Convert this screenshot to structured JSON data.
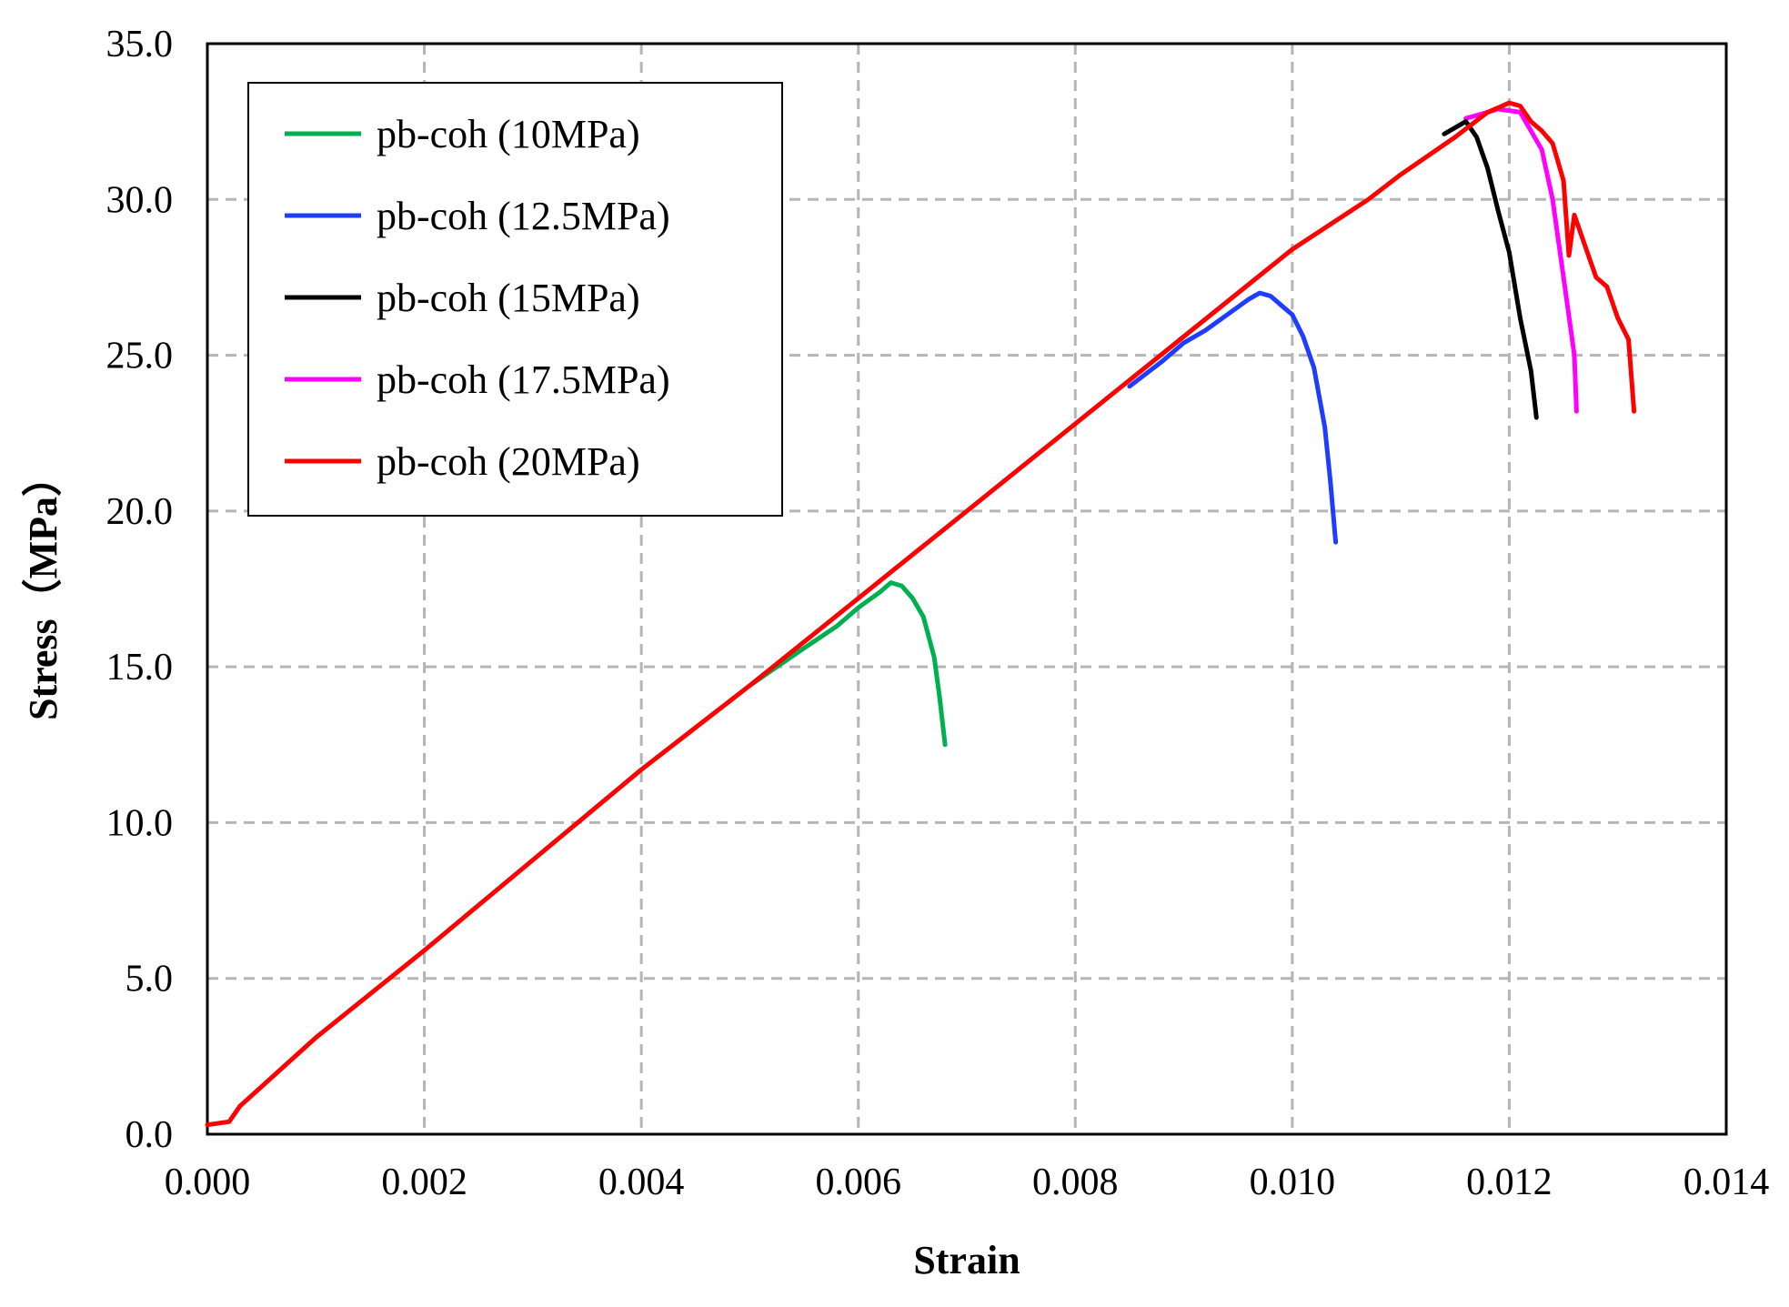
{
  "chart_data": {
    "type": "line",
    "title": "",
    "xlabel": "Strain",
    "ylabel": "Stress（MPa）",
    "xlim": [
      0,
      0.014
    ],
    "ylim": [
      0,
      35
    ],
    "x_ticks": [
      "0.000",
      "0.002",
      "0.004",
      "0.006",
      "0.008",
      "0.010",
      "0.012",
      "0.014"
    ],
    "y_ticks": [
      "0.0",
      "5.0",
      "10.0",
      "15.0",
      "20.0",
      "25.0",
      "30.0",
      "35.0"
    ],
    "grid": true,
    "legend_position": "top-left",
    "series": [
      {
        "name": "pb-coh (10MPa)",
        "color": "#00b050",
        "points": [
          [
            0.005,
            14.4
          ],
          [
            0.0055,
            15.6
          ],
          [
            0.0058,
            16.3
          ],
          [
            0.006,
            16.9
          ],
          [
            0.0062,
            17.4
          ],
          [
            0.0063,
            17.7
          ],
          [
            0.0064,
            17.6
          ],
          [
            0.0065,
            17.2
          ],
          [
            0.0066,
            16.6
          ],
          [
            0.0067,
            15.3
          ],
          [
            0.00675,
            14.0
          ],
          [
            0.0068,
            12.5
          ]
        ]
      },
      {
        "name": "pb-coh (12.5MPa)",
        "color": "#1f3dff",
        "points": [
          [
            0.0085,
            24.0
          ],
          [
            0.0088,
            24.8
          ],
          [
            0.009,
            25.4
          ],
          [
            0.0092,
            25.8
          ],
          [
            0.0094,
            26.3
          ],
          [
            0.0096,
            26.8
          ],
          [
            0.0097,
            27.0
          ],
          [
            0.0098,
            26.9
          ],
          [
            0.0099,
            26.6
          ],
          [
            0.01,
            26.3
          ],
          [
            0.0101,
            25.6
          ],
          [
            0.0102,
            24.6
          ],
          [
            0.0103,
            22.7
          ],
          [
            0.01035,
            21.0
          ],
          [
            0.0104,
            19.0
          ]
        ]
      },
      {
        "name": "pb-coh (15MPa)",
        "color": "#000000",
        "points": [
          [
            0.0114,
            32.1
          ],
          [
            0.0116,
            32.5
          ],
          [
            0.0117,
            32.0
          ],
          [
            0.0118,
            31.0
          ],
          [
            0.0119,
            29.6
          ],
          [
            0.012,
            28.3
          ],
          [
            0.0121,
            26.2
          ],
          [
            0.0122,
            24.5
          ],
          [
            0.01225,
            23.0
          ]
        ]
      },
      {
        "name": "pb-coh (17.5MPa)",
        "color": "#ff00ff",
        "points": [
          [
            0.0116,
            32.6
          ],
          [
            0.0118,
            32.8
          ],
          [
            0.0119,
            32.9
          ],
          [
            0.0121,
            32.8
          ],
          [
            0.0122,
            32.2
          ],
          [
            0.0123,
            31.6
          ],
          [
            0.0124,
            30.0
          ],
          [
            0.0125,
            27.5
          ],
          [
            0.0126,
            25.0
          ],
          [
            0.01262,
            23.2
          ]
        ]
      },
      {
        "name": "pb-coh (20MPa)",
        "color": "#ff0000",
        "points": [
          [
            0.0,
            0.3
          ],
          [
            0.0002,
            0.4
          ],
          [
            0.0003,
            0.9
          ],
          [
            0.001,
            3.1
          ],
          [
            0.002,
            5.9
          ],
          [
            0.003,
            8.8
          ],
          [
            0.004,
            11.7
          ],
          [
            0.005,
            14.4
          ],
          [
            0.006,
            17.2
          ],
          [
            0.007,
            20.0
          ],
          [
            0.008,
            22.8
          ],
          [
            0.009,
            25.6
          ],
          [
            0.01,
            28.4
          ],
          [
            0.0107,
            30.0
          ],
          [
            0.011,
            30.8
          ],
          [
            0.0115,
            32.0
          ],
          [
            0.0118,
            32.8
          ],
          [
            0.012,
            33.1
          ],
          [
            0.0121,
            33.0
          ],
          [
            0.0122,
            32.5
          ],
          [
            0.0123,
            32.2
          ],
          [
            0.0124,
            31.8
          ],
          [
            0.0125,
            30.6
          ],
          [
            0.01255,
            28.2
          ],
          [
            0.0126,
            29.5
          ],
          [
            0.0127,
            28.5
          ],
          [
            0.0128,
            27.5
          ],
          [
            0.0129,
            27.2
          ],
          [
            0.013,
            26.2
          ],
          [
            0.0131,
            25.5
          ],
          [
            0.01315,
            23.2
          ]
        ]
      }
    ]
  }
}
